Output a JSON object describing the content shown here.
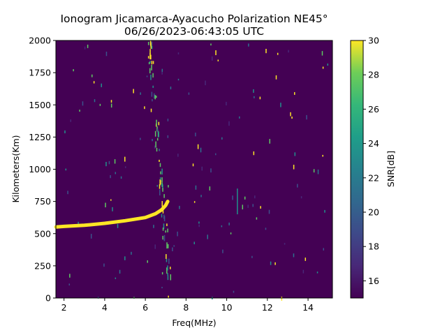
{
  "chart_data": {
    "type": "heatmap",
    "title": "Ionogram Jicamarca-Ayacucho Polarization NE45°",
    "subtitle": "06/26/2023-06:43:05 UTC",
    "xlabel": "Freq(MHz)",
    "ylabel": "Kilometers(Km)",
    "xlim": [
      1.6,
      15.2
    ],
    "ylim": [
      0,
      2000
    ],
    "x_ticks": [
      2,
      4,
      6,
      8,
      10,
      12,
      14
    ],
    "y_ticks": [
      0,
      250,
      500,
      750,
      1000,
      1250,
      1500,
      1750,
      2000
    ],
    "colorbar": {
      "label": "SNR[dB]",
      "range": [
        15,
        30
      ],
      "ticks": [
        16,
        18,
        20,
        22,
        24,
        26,
        28,
        30
      ],
      "colormap": "viridis"
    },
    "background_color": "#440154",
    "trace_color": "#fde725",
    "trace": {
      "name": "",
      "snr_db": 30,
      "points": [
        {
          "freq": 1.6,
          "km": 552
        },
        {
          "freq": 2.0,
          "km": 556
        },
        {
          "freq": 3.0,
          "km": 565
        },
        {
          "freq": 4.0,
          "km": 580
        },
        {
          "freq": 5.0,
          "km": 600
        },
        {
          "freq": 6.0,
          "km": 625
        },
        {
          "freq": 6.5,
          "km": 655
        },
        {
          "freq": 6.8,
          "km": 685
        },
        {
          "freq": 7.0,
          "km": 720
        },
        {
          "freq": 7.1,
          "km": 750
        }
      ]
    }
  }
}
